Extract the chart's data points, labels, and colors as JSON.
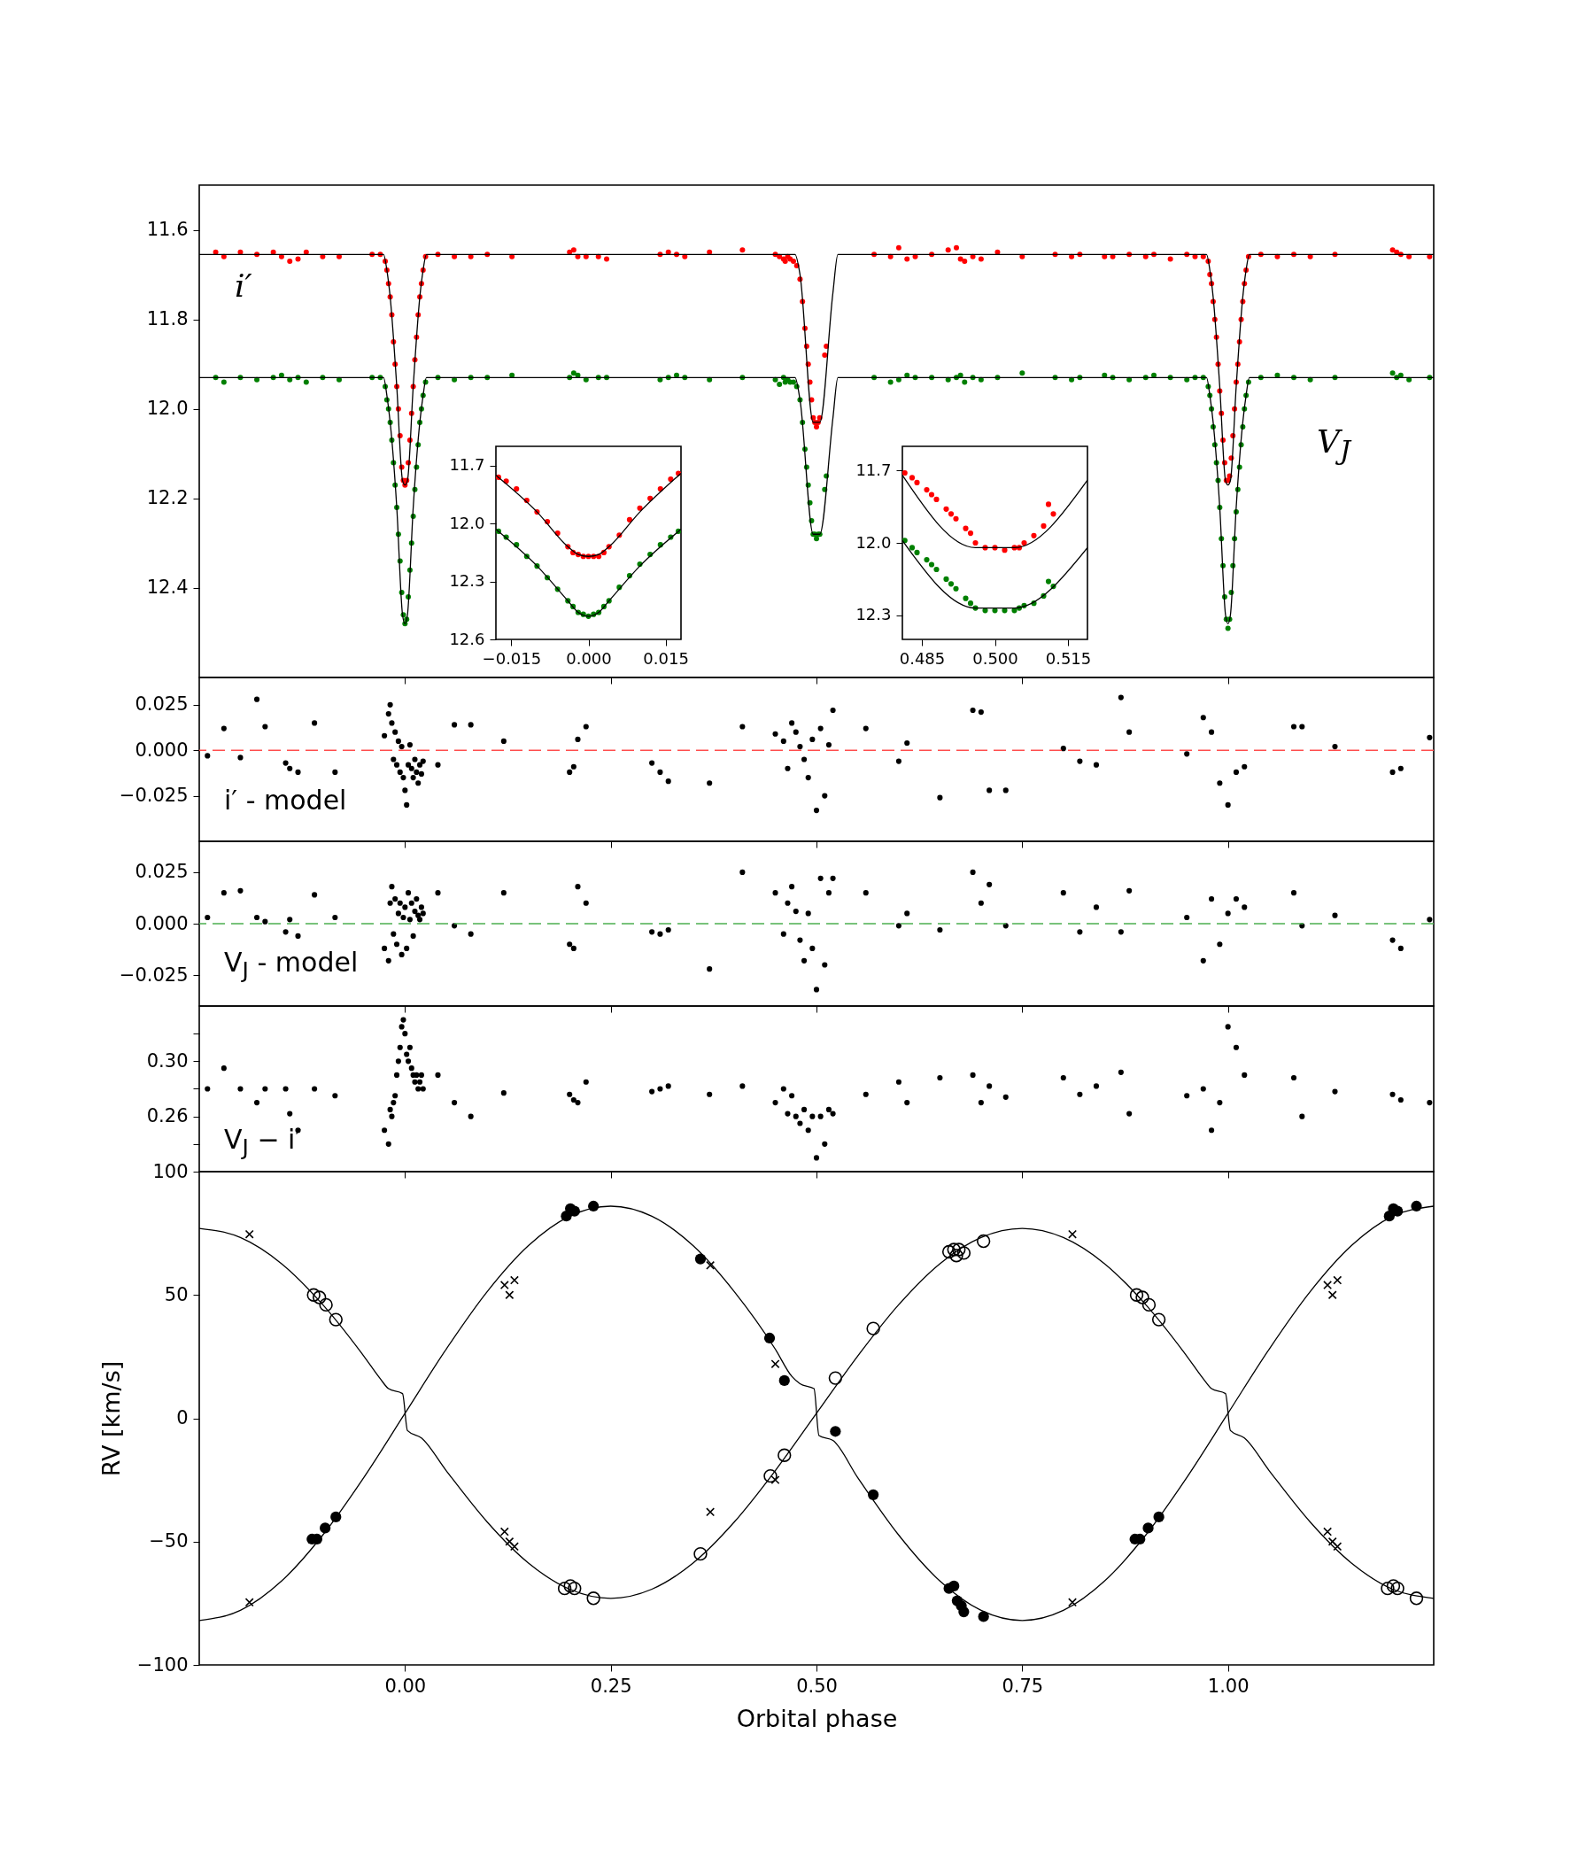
{
  "chart_data": [
    {
      "type": "scatter",
      "xlim": [
        -0.25,
        1.25
      ],
      "ylim": [
        12.6,
        11.5
      ],
      "xticks": [
        {
          "value": 0,
          "label": null
        },
        {
          "value": 0.25,
          "label": null
        },
        {
          "value": 0.5,
          "label": null
        },
        {
          "value": 0.75,
          "label": null
        },
        {
          "value": 1,
          "label": null
        }
      ],
      "yticks": [
        11.6,
        11.8,
        {
          "value": 12.0,
          "label": "12.0"
        },
        12.2,
        12.4
      ],
      "tick_labels": "y",
      "series": [
        {
          "name": "i′",
          "marker": "circle",
          "color": "#ff0000",
          "x": [
            -0.23,
            -0.22,
            -0.2,
            -0.18,
            -0.16,
            -0.15,
            -0.14,
            -0.13,
            -0.12,
            -0.1,
            -0.08,
            -0.04,
            -0.03,
            -0.024,
            -0.022,
            -0.02,
            -0.018,
            -0.016,
            -0.014,
            -0.012,
            -0.01,
            -0.008,
            -0.006,
            -0.004,
            -0.002,
            0,
            0.002,
            0.004,
            0.006,
            0.008,
            0.01,
            0.012,
            0.014,
            0.016,
            0.018,
            0.02,
            0.022,
            0.025,
            0.04,
            0.06,
            0.08,
            0.1,
            0.13,
            0.2,
            0.205,
            0.21,
            0.22,
            0.235,
            0.245,
            0.31,
            0.32,
            0.33,
            0.34,
            0.37,
            0.41,
            0.45,
            0.455,
            0.46,
            0.462,
            0.465,
            0.468,
            0.472,
            0.476,
            0.48,
            0.483,
            0.486,
            0.488,
            0.49,
            0.492,
            0.494,
            0.496,
            0.498,
            0.5,
            0.502,
            0.504,
            0.51,
            0.512,
            0.57,
            0.59,
            0.6,
            0.61,
            0.62,
            0.64,
            0.66,
            0.67,
            0.675,
            0.68,
            0.69,
            0.7,
            0.72,
            0.75,
            0.79,
            0.81,
            0.82,
            0.85,
            0.86,
            0.88,
            0.9,
            0.91,
            0.93,
            0.95,
            0.96,
            0.97,
            0.976,
            0.978,
            0.98,
            0.982,
            0.984,
            0.986,
            0.988,
            0.99,
            0.992,
            0.994,
            0.996,
            0.998,
            1,
            1.002,
            1.004,
            1.006,
            1.008,
            1.01,
            1.012,
            1.014,
            1.016,
            1.018,
            1.02,
            1.022,
            1.025,
            1.04,
            1.06,
            1.08,
            1.1,
            1.13,
            1.2,
            1.205,
            1.21,
            1.22,
            1.245
          ],
          "values": [
            11.65,
            11.66,
            11.65,
            11.655,
            11.65,
            11.66,
            11.67,
            11.665,
            11.65,
            11.66,
            11.66,
            11.655,
            11.655,
            11.67,
            11.69,
            11.72,
            11.75,
            11.79,
            11.85,
            11.9,
            11.95,
            12.0,
            12.06,
            12.13,
            12.16,
            12.17,
            12.16,
            12.12,
            12.07,
            12.01,
            11.95,
            11.89,
            11.84,
            11.79,
            11.75,
            11.72,
            11.69,
            11.66,
            11.655,
            11.66,
            11.66,
            11.655,
            11.66,
            11.65,
            11.645,
            11.66,
            11.66,
            11.66,
            11.665,
            11.655,
            11.65,
            11.655,
            11.66,
            11.65,
            11.645,
            11.655,
            11.66,
            11.665,
            11.67,
            11.66,
            11.665,
            11.67,
            11.68,
            11.71,
            11.76,
            11.82,
            11.86,
            11.9,
            11.94,
            11.98,
            12.02,
            12.03,
            12.04,
            12.03,
            12.02,
            11.88,
            11.86,
            11.655,
            11.66,
            11.64,
            11.665,
            11.66,
            11.655,
            11.645,
            11.64,
            11.665,
            11.67,
            11.66,
            11.665,
            11.65,
            11.66,
            11.655,
            11.66,
            11.655,
            11.66,
            11.66,
            11.655,
            11.66,
            11.655,
            11.665,
            11.655,
            11.66,
            11.66,
            11.67,
            11.7,
            11.72,
            11.76,
            11.8,
            11.84,
            11.9,
            11.96,
            12.01,
            12.07,
            12.12,
            12.16,
            12.16,
            12.15,
            12.11,
            12.06,
            12.0,
            11.94,
            11.9,
            11.85,
            11.8,
            11.76,
            11.72,
            11.69,
            11.66,
            11.655,
            11.66,
            11.655,
            11.66,
            11.655,
            11.645,
            11.65,
            11.655,
            11.66,
            11.66
          ]
        },
        {
          "name": "V$_{J}$",
          "marker": "circle",
          "color": "#008000",
          "x": [
            -0.23,
            -0.22,
            -0.2,
            -0.18,
            -0.16,
            -0.15,
            -0.14,
            -0.13,
            -0.12,
            -0.1,
            -0.08,
            -0.04,
            -0.03,
            -0.024,
            -0.022,
            -0.02,
            -0.018,
            -0.016,
            -0.014,
            -0.012,
            -0.01,
            -0.008,
            -0.006,
            -0.004,
            -0.002,
            0,
            0.002,
            0.004,
            0.006,
            0.008,
            0.01,
            0.012,
            0.014,
            0.016,
            0.018,
            0.02,
            0.022,
            0.025,
            0.04,
            0.06,
            0.08,
            0.1,
            0.13,
            0.2,
            0.205,
            0.21,
            0.22,
            0.235,
            0.245,
            0.31,
            0.32,
            0.33,
            0.34,
            0.37,
            0.41,
            0.45,
            0.455,
            0.46,
            0.462,
            0.465,
            0.468,
            0.472,
            0.476,
            0.48,
            0.483,
            0.486,
            0.488,
            0.49,
            0.492,
            0.494,
            0.496,
            0.498,
            0.5,
            0.502,
            0.504,
            0.51,
            0.512,
            0.57,
            0.59,
            0.6,
            0.61,
            0.62,
            0.64,
            0.66,
            0.67,
            0.675,
            0.68,
            0.69,
            0.7,
            0.72,
            0.75,
            0.79,
            0.81,
            0.82,
            0.85,
            0.86,
            0.88,
            0.9,
            0.91,
            0.93,
            0.95,
            0.96,
            0.97,
            0.976,
            0.978,
            0.98,
            0.982,
            0.984,
            0.986,
            0.988,
            0.99,
            0.992,
            0.994,
            0.996,
            0.998,
            1,
            1.002,
            1.004,
            1.006,
            1.008,
            1.01,
            1.012,
            1.014,
            1.016,
            1.018,
            1.02,
            1.022,
            1.025,
            1.04,
            1.06,
            1.08,
            1.1,
            1.13,
            1.2,
            1.205,
            1.21,
            1.22,
            1.245
          ],
          "values": [
            11.93,
            11.94,
            11.93,
            11.935,
            11.93,
            11.925,
            11.935,
            11.93,
            11.94,
            11.93,
            11.935,
            11.93,
            11.93,
            11.95,
            11.98,
            12.0,
            12.03,
            12.07,
            12.12,
            12.17,
            12.22,
            12.28,
            12.34,
            12.41,
            12.46,
            12.48,
            12.47,
            12.42,
            12.36,
            12.3,
            12.24,
            12.18,
            12.13,
            12.08,
            12.03,
            12.0,
            11.97,
            11.94,
            11.93,
            11.935,
            11.93,
            11.93,
            11.925,
            11.93,
            11.92,
            11.925,
            11.935,
            11.93,
            11.93,
            11.935,
            11.93,
            11.925,
            11.93,
            11.935,
            11.93,
            11.935,
            11.945,
            11.93,
            11.94,
            11.935,
            11.94,
            11.94,
            11.95,
            11.98,
            12.03,
            12.09,
            12.13,
            12.17,
            12.21,
            12.25,
            12.28,
            12.28,
            12.29,
            12.28,
            12.28,
            12.18,
            12.15,
            11.93,
            11.94,
            11.935,
            11.925,
            11.93,
            11.93,
            11.935,
            11.93,
            11.925,
            11.94,
            11.93,
            11.935,
            11.93,
            11.92,
            11.93,
            11.935,
            11.93,
            11.925,
            11.93,
            11.935,
            11.93,
            11.925,
            11.93,
            11.935,
            11.93,
            11.93,
            11.95,
            11.97,
            12.0,
            12.04,
            12.08,
            12.12,
            12.16,
            12.22,
            12.29,
            12.35,
            12.42,
            12.47,
            12.49,
            12.47,
            12.41,
            12.35,
            12.29,
            12.23,
            12.18,
            12.13,
            12.08,
            12.04,
            12.0,
            11.97,
            11.94,
            11.93,
            11.925,
            11.93,
            11.935,
            11.93,
            11.92,
            11.93,
            11.925,
            11.935,
            11.93
          ]
        },
        {
          "type": "line",
          "color": "#000000",
          "x": [
            -0.25,
            -0.026,
            -0.022,
            -0.018,
            -0.01,
            -0.003,
            0,
            0.003,
            0.01,
            0.018,
            0.022,
            0.026,
            0.474,
            0.48,
            0.496,
            0.504,
            0.52,
            0.526,
            0.974,
            0.978,
            0.982,
            0.99,
            0.997,
            1,
            1.003,
            1.01,
            1.018,
            1.022,
            1.026,
            1.25
          ],
          "values": [
            11.655,
            11.655,
            11.69,
            11.75,
            11.95,
            12.16,
            12.17,
            12.16,
            11.95,
            11.75,
            11.69,
            11.655,
            11.655,
            11.7,
            12.03,
            12.03,
            11.74,
            11.655,
            11.655,
            11.69,
            11.75,
            11.95,
            12.16,
            12.17,
            12.16,
            11.95,
            11.75,
            11.69,
            11.655,
            11.655
          ]
        },
        {
          "type": "line",
          "color": "#000000",
          "x": [
            -0.25,
            -0.026,
            -0.022,
            -0.018,
            -0.01,
            -0.003,
            0,
            0.003,
            0.01,
            0.018,
            0.022,
            0.026,
            0.474,
            0.48,
            0.496,
            0.504,
            0.52,
            0.526,
            0.974,
            0.978,
            0.982,
            0.99,
            0.997,
            1,
            1.003,
            1.01,
            1.018,
            1.022,
            1.026,
            1.25
          ],
          "values": [
            11.93,
            11.93,
            11.97,
            12.03,
            12.22,
            12.46,
            12.48,
            12.46,
            12.22,
            12.03,
            11.97,
            11.93,
            11.93,
            11.98,
            12.28,
            12.28,
            12.02,
            11.93,
            11.93,
            11.97,
            12.03,
            12.22,
            12.46,
            12.48,
            12.46,
            12.22,
            12.03,
            11.97,
            11.93,
            11.93
          ]
        }
      ]
    },
    {
      "type": "scatter",
      "xlim": [
        -0.018,
        0.018
      ],
      "ylim": [
        12.6,
        11.6
      ],
      "xticks": [
        {
          "value": -0.015,
          "label": "−0.015"
        },
        {
          "value": 0,
          "label": "0.000"
        },
        {
          "value": 0.015,
          "label": "0.015"
        }
      ],
      "yticks": [
        11.7,
        {
          "value": 12.0,
          "label": "12.0"
        },
        12.3,
        12.6
      ],
      "series": [
        {
          "marker": "circle",
          "color": "#ff0000",
          "x": [
            -0.0175,
            -0.016,
            -0.014,
            -0.012,
            -0.01,
            -0.008,
            -0.006,
            -0.004,
            -0.003,
            -0.002,
            -0.001,
            0,
            0.001,
            0.002,
            0.003,
            0.004,
            0.006,
            0.008,
            0.01,
            0.012,
            0.014,
            0.016,
            0.0175
          ],
          "values": [
            11.76,
            11.78,
            11.82,
            11.88,
            11.94,
            11.99,
            12.05,
            12.12,
            12.15,
            12.16,
            12.17,
            12.17,
            12.17,
            12.17,
            12.15,
            12.12,
            12.06,
            11.98,
            11.92,
            11.87,
            11.82,
            11.77,
            11.74
          ]
        },
        {
          "marker": "circle",
          "color": "#008000",
          "x": [
            -0.0175,
            -0.016,
            -0.014,
            -0.012,
            -0.01,
            -0.008,
            -0.006,
            -0.004,
            -0.003,
            -0.002,
            -0.001,
            0,
            0.001,
            0.002,
            0.003,
            0.004,
            0.006,
            0.008,
            0.01,
            0.012,
            0.014,
            0.016,
            0.0175
          ],
          "values": [
            12.04,
            12.07,
            12.11,
            12.17,
            12.22,
            12.28,
            12.34,
            12.4,
            12.43,
            12.46,
            12.47,
            12.48,
            12.47,
            12.46,
            12.43,
            12.4,
            12.33,
            12.27,
            12.21,
            12.16,
            12.11,
            12.07,
            12.04
          ]
        },
        {
          "type": "line",
          "color": "#000000",
          "x": [
            -0.018,
            -0.01,
            -0.004,
            -0.002,
            0,
            0.002,
            0.004,
            0.01,
            0.018
          ],
          "values": [
            11.75,
            11.94,
            12.12,
            12.16,
            12.17,
            12.16,
            12.12,
            11.94,
            11.74
          ]
        },
        {
          "type": "line",
          "color": "#000000",
          "x": [
            -0.018,
            -0.01,
            -0.004,
            -0.002,
            0,
            0.002,
            0.004,
            0.01,
            0.018
          ],
          "values": [
            12.03,
            12.22,
            12.4,
            12.46,
            12.48,
            12.46,
            12.4,
            12.22,
            12.03
          ]
        }
      ]
    },
    {
      "type": "scatter",
      "xlim": [
        0.481,
        0.519
      ],
      "ylim": [
        12.4,
        11.6
      ],
      "xticks": [
        0.485,
        {
          "value": 0.5,
          "label": "0.500"
        },
        0.515
      ],
      "yticks": [
        11.7,
        {
          "value": 12.0,
          "label": "12.0"
        },
        12.3
      ],
      "series": [
        {
          "marker": "circle",
          "color": "#ff0000",
          "x": [
            0.4815,
            0.483,
            0.484,
            0.486,
            0.487,
            0.488,
            0.49,
            0.491,
            0.492,
            0.494,
            0.495,
            0.496,
            0.498,
            0.5,
            0.502,
            0.504,
            0.505,
            0.506,
            0.508,
            0.51,
            0.511,
            0.512
          ],
          "values": [
            11.71,
            11.73,
            11.75,
            11.78,
            11.8,
            11.82,
            11.86,
            11.88,
            11.9,
            11.94,
            11.96,
            12.0,
            12.02,
            12.02,
            12.03,
            12.02,
            12.02,
            12.0,
            11.97,
            11.93,
            11.84,
            11.88
          ]
        },
        {
          "marker": "circle",
          "color": "#008000",
          "x": [
            0.4815,
            0.483,
            0.484,
            0.486,
            0.487,
            0.488,
            0.49,
            0.491,
            0.492,
            0.494,
            0.495,
            0.496,
            0.498,
            0.5,
            0.502,
            0.504,
            0.505,
            0.506,
            0.508,
            0.51,
            0.511,
            0.512
          ],
          "values": [
            11.99,
            12.02,
            12.04,
            12.07,
            12.09,
            12.11,
            12.15,
            12.17,
            12.19,
            12.23,
            12.25,
            12.27,
            12.28,
            12.28,
            12.28,
            12.28,
            12.27,
            12.26,
            12.25,
            12.22,
            12.16,
            12.18
          ]
        },
        {
          "type": "line",
          "color": "#000000",
          "x": [
            0.481,
            0.496,
            0.504,
            0.519
          ],
          "values": [
            11.72,
            12.02,
            12.02,
            11.74
          ]
        },
        {
          "type": "line",
          "color": "#000000",
          "x": [
            0.481,
            0.496,
            0.504,
            0.519
          ],
          "values": [
            11.99,
            12.27,
            12.27,
            12.02
          ]
        }
      ]
    },
    {
      "type": "scatter",
      "xlim": [
        -0.25,
        1.25
      ],
      "ylim": [
        -0.05,
        0.04
      ],
      "xticks": [
        {
          "value": 0,
          "label": null
        },
        {
          "value": 0.25,
          "label": null
        },
        {
          "value": 0.5,
          "label": null
        },
        {
          "value": 0.75,
          "label": null
        },
        {
          "value": 1,
          "label": null
        }
      ],
      "yticks": [
        {
          "value": 0.025,
          "label": "0.025"
        },
        {
          "value": 0,
          "label": "0.000"
        },
        {
          "value": -0.025,
          "label": "−0.025"
        }
      ],
      "tick_labels": "y",
      "annotations": [
        "i′ - model"
      ],
      "ref_lines": [
        {
          "axis": "y",
          "value": 0,
          "color": "#ff4d4d",
          "line_style": "dashed"
        }
      ],
      "x": [
        -0.24,
        -0.22,
        -0.2,
        -0.18,
        -0.17,
        -0.145,
        -0.14,
        -0.13,
        -0.11,
        -0.085,
        -0.025,
        -0.02,
        -0.018,
        -0.016,
        -0.014,
        -0.012,
        -0.01,
        -0.008,
        -0.006,
        -0.004,
        -0.002,
        0,
        0.002,
        0.004,
        0.006,
        0.008,
        0.01,
        0.012,
        0.014,
        0.016,
        0.018,
        0.02,
        0.022,
        0.04,
        0.06,
        0.08,
        0.12,
        0.2,
        0.205,
        0.21,
        0.22,
        0.3,
        0.31,
        0.32,
        0.37,
        0.41,
        0.45,
        0.46,
        0.465,
        0.47,
        0.475,
        0.48,
        0.485,
        0.49,
        0.495,
        0.5,
        0.505,
        0.51,
        0.515,
        0.52,
        0.56,
        0.6,
        0.61,
        0.65,
        0.69,
        0.7,
        0.71,
        0.73,
        0.8,
        0.82,
        0.84,
        0.87,
        0.88,
        0.95,
        0.97,
        0.98,
        0.99,
        1.0,
        1.01,
        1.02,
        1.08,
        1.09,
        1.13,
        1.2,
        1.21,
        1.245
      ],
      "series": [
        {
          "marker": "circle",
          "color": "#000000",
          "values": [
            -0.003,
            0.012,
            -0.004,
            0.028,
            0.013,
            -0.007,
            -0.01,
            -0.012,
            0.015,
            -0.012,
            0.008,
            0.02,
            0.025,
            0.015,
            -0.005,
            0.01,
            -0.008,
            0.005,
            -0.012,
            0.002,
            -0.015,
            -0.022,
            -0.03,
            -0.008,
            0.003,
            -0.01,
            -0.015,
            -0.005,
            -0.012,
            -0.018,
            -0.008,
            -0.013,
            -0.006,
            -0.008,
            0.014,
            0.014,
            0.005,
            -0.012,
            -0.009,
            0.006,
            0.013,
            -0.007,
            -0.012,
            -0.017,
            -0.018,
            0.013,
            0.009,
            0.005,
            -0.01,
            0.015,
            0.01,
            0.002,
            -0.005,
            -0.015,
            0.006,
            -0.033,
            0.012,
            -0.025,
            0.003,
            0.022,
            0.012,
            -0.006,
            0.004,
            -0.026,
            0.022,
            0.021,
            -0.022,
            -0.022,
            0.001,
            -0.006,
            -0.008,
            0.029,
            0.01,
            -0.002,
            0.018,
            0.01,
            -0.018,
            -0.03,
            -0.012,
            -0.009,
            0.013,
            0.013,
            0.002,
            -0.012,
            -0.01,
            0.007
          ]
        }
      ]
    },
    {
      "type": "scatter",
      "xlim": [
        -0.25,
        1.25
      ],
      "ylim": [
        -0.04,
        0.04
      ],
      "xticks": [
        {
          "value": 0,
          "label": null
        },
        {
          "value": 0.25,
          "label": null
        },
        {
          "value": 0.5,
          "label": null
        },
        {
          "value": 0.75,
          "label": null
        },
        {
          "value": 1,
          "label": null
        }
      ],
      "yticks": [
        {
          "value": 0.025,
          "label": "0.025"
        },
        {
          "value": 0,
          "label": "0.000"
        },
        {
          "value": -0.025,
          "label": "−0.025"
        }
      ],
      "tick_labels": "y",
      "annotations": [
        "V$_{J}$ - model"
      ],
      "ref_lines": [
        {
          "axis": "y",
          "value": 0,
          "color": "#4caf50",
          "line_style": "dashed"
        }
      ],
      "x": [
        -0.24,
        -0.22,
        -0.2,
        -0.18,
        -0.17,
        -0.145,
        -0.14,
        -0.13,
        -0.11,
        -0.085,
        -0.025,
        -0.02,
        -0.018,
        -0.016,
        -0.014,
        -0.012,
        -0.01,
        -0.008,
        -0.006,
        -0.004,
        -0.002,
        0,
        0.002,
        0.004,
        0.006,
        0.008,
        0.01,
        0.012,
        0.014,
        0.016,
        0.018,
        0.02,
        0.022,
        0.04,
        0.06,
        0.08,
        0.12,
        0.2,
        0.205,
        0.21,
        0.22,
        0.3,
        0.31,
        0.32,
        0.37,
        0.41,
        0.45,
        0.46,
        0.465,
        0.47,
        0.475,
        0.48,
        0.485,
        0.49,
        0.495,
        0.5,
        0.505,
        0.51,
        0.515,
        0.52,
        0.56,
        0.6,
        0.61,
        0.65,
        0.69,
        0.7,
        0.71,
        0.73,
        0.8,
        0.82,
        0.84,
        0.87,
        0.88,
        0.95,
        0.97,
        0.98,
        0.99,
        1.0,
        1.01,
        1.02,
        1.08,
        1.09,
        1.13,
        1.2,
        1.21,
        1.245
      ],
      "series": [
        {
          "marker": "circle",
          "color": "#000000",
          "values": [
            0.003,
            0.015,
            0.016,
            0.003,
            0.001,
            -0.004,
            0.002,
            -0.006,
            0.014,
            0.003,
            -0.012,
            -0.018,
            0.01,
            0.018,
            -0.005,
            0.012,
            -0.01,
            0.005,
            0.01,
            -0.015,
            0.003,
            0.008,
            -0.012,
            0.015,
            0.002,
            0.01,
            -0.006,
            0.006,
            0.012,
            0.004,
            0.002,
            0.008,
            0.005,
            0.015,
            -0.001,
            -0.005,
            0.015,
            -0.01,
            -0.012,
            0.018,
            0.01,
            -0.004,
            -0.005,
            -0.003,
            -0.022,
            0.025,
            0.015,
            -0.005,
            0.01,
            0.018,
            0.006,
            -0.008,
            -0.018,
            0.005,
            -0.012,
            -0.032,
            0.022,
            -0.02,
            0.015,
            0.022,
            0.015,
            -0.001,
            0.005,
            -0.003,
            0.025,
            0.01,
            0.019,
            -0.001,
            0.015,
            -0.004,
            0.008,
            -0.004,
            0.016,
            0.003,
            -0.018,
            0.012,
            -0.01,
            0.005,
            0.012,
            0.008,
            0.015,
            -0.001,
            0.004,
            -0.008,
            -0.012,
            0.002
          ]
        }
      ]
    },
    {
      "type": "scatter",
      "xlim": [
        -0.25,
        1.25
      ],
      "ylim": [
        0.22,
        0.34
      ],
      "xticks": [
        {
          "value": 0,
          "label": null
        },
        {
          "value": 0.25,
          "label": null
        },
        {
          "value": 0.5,
          "label": null
        },
        {
          "value": 0.75,
          "label": null
        },
        {
          "value": 1,
          "label": null
        }
      ],
      "yticks": [
        {
          "value": 0.24,
          "label": null
        },
        {
          "value": 0.26,
          "label": "0.26"
        },
        {
          "value": 0.28,
          "label": null
        },
        {
          "value": 0.3,
          "label": "0.30"
        },
        {
          "value": 0.32,
          "label": null
        }
      ],
      "tick_labels": "y",
      "annotations": [
        "V$_{J}$ − i′"
      ],
      "x": [
        -0.24,
        -0.22,
        -0.2,
        -0.18,
        -0.17,
        -0.145,
        -0.14,
        -0.13,
        -0.11,
        -0.085,
        -0.025,
        -0.02,
        -0.018,
        -0.016,
        -0.014,
        -0.012,
        -0.01,
        -0.008,
        -0.006,
        -0.004,
        -0.002,
        0,
        0.002,
        0.004,
        0.006,
        0.008,
        0.01,
        0.012,
        0.014,
        0.016,
        0.018,
        0.02,
        0.022,
        0.04,
        0.06,
        0.08,
        0.12,
        0.2,
        0.205,
        0.21,
        0.22,
        0.3,
        0.31,
        0.32,
        0.37,
        0.41,
        0.45,
        0.46,
        0.465,
        0.47,
        0.475,
        0.48,
        0.485,
        0.49,
        0.495,
        0.5,
        0.505,
        0.51,
        0.515,
        0.52,
        0.56,
        0.6,
        0.61,
        0.65,
        0.69,
        0.7,
        0.71,
        0.73,
        0.8,
        0.82,
        0.84,
        0.87,
        0.88,
        0.95,
        0.97,
        0.98,
        0.99,
        1.0,
        1.01,
        1.02,
        1.08,
        1.09,
        1.13,
        1.2,
        1.21,
        1.245
      ],
      "series": [
        {
          "marker": "circle",
          "color": "#000000",
          "values": [
            0.28,
            0.295,
            0.28,
            0.27,
            0.28,
            0.28,
            0.262,
            0.25,
            0.28,
            0.275,
            0.25,
            0.24,
            0.265,
            0.26,
            0.27,
            0.275,
            0.29,
            0.3,
            0.31,
            0.325,
            0.33,
            0.32,
            0.305,
            0.3,
            0.31,
            0.295,
            0.29,
            0.285,
            0.29,
            0.28,
            0.285,
            0.29,
            0.28,
            0.29,
            0.27,
            0.26,
            0.277,
            0.276,
            0.272,
            0.27,
            0.285,
            0.278,
            0.28,
            0.282,
            0.276,
            0.282,
            0.27,
            0.28,
            0.262,
            0.275,
            0.26,
            0.255,
            0.265,
            0.25,
            0.26,
            0.23,
            0.26,
            0.24,
            0.265,
            0.262,
            0.276,
            0.285,
            0.27,
            0.288,
            0.29,
            0.27,
            0.282,
            0.274,
            0.288,
            0.276,
            0.282,
            0.292,
            0.262,
            0.275,
            0.28,
            0.25,
            0.27,
            0.325,
            0.31,
            0.29,
            0.288,
            0.26,
            0.278,
            0.276,
            0.272,
            0.27
          ]
        }
      ]
    },
    {
      "type": "scatter",
      "xlim": [
        -0.25,
        1.25
      ],
      "ylim": [
        -100,
        100
      ],
      "xlabel": "Orbital phase",
      "ylabel": "RV [km/s]",
      "xticks": [
        {
          "value": 0,
          "label": "0.00"
        },
        {
          "value": 0.25,
          "label": "0.25"
        },
        {
          "value": 0.5,
          "label": "0.50"
        },
        {
          "value": 0.75,
          "label": "0.75"
        },
        {
          "value": 1,
          "label": "1.00"
        }
      ],
      "yticks": [
        {
          "value": -100,
          "label": "−100"
        },
        {
          "value": -50,
          "label": "−50"
        },
        0,
        50,
        100
      ],
      "series": [
        {
          "type": "line",
          "color": "#000000",
          "x": [
            -0.25,
            -0.2,
            -0.15,
            -0.1,
            -0.05,
            0,
            0.05,
            0.1,
            0.15,
            0.2,
            0.25,
            0.3,
            0.35,
            0.4,
            0.45,
            0.47,
            0.48,
            0.497,
            0.503,
            0.52,
            0.55,
            0.6,
            0.65,
            0.7,
            0.75,
            0.8,
            0.85,
            0.9,
            0.95,
            1,
            1.05,
            1.1,
            1.15,
            1.2,
            1.25
          ],
          "values": [
            -82,
            -77.9,
            -66,
            -47.4,
            -24,
            2,
            28,
            51.4,
            70,
            81.9,
            86,
            81.9,
            70,
            51.4,
            28,
            17,
            14,
            12,
            -7,
            -9,
            -24,
            -47.4,
            -66,
            -77.9,
            -82,
            -77.9,
            -66,
            -47.4,
            -24,
            2,
            28,
            51.4,
            70,
            81.9,
            86
          ]
        },
        {
          "type": "line",
          "color": "#000000",
          "x": [
            -0.25,
            -0.2,
            -0.15,
            -0.1,
            -0.05,
            -0.03,
            -0.02,
            -0.003,
            0.003,
            0.02,
            0.05,
            0.1,
            0.15,
            0.2,
            0.25,
            0.3,
            0.35,
            0.4,
            0.45,
            0.5,
            0.55,
            0.6,
            0.65,
            0.7,
            0.75,
            0.8,
            0.85,
            0.9,
            0.95,
            0.97,
            0.98,
            0.997,
            1.003,
            1.02,
            1.05,
            1.1,
            1.15,
            1.2,
            1.25
          ],
          "values": [
            77,
            73.3,
            62.7,
            46.1,
            25.2,
            16,
            12,
            10,
            -5,
            -8,
            -21.2,
            -42.1,
            -58.7,
            -69.3,
            -73,
            -69.3,
            -58.7,
            -42.1,
            -21.2,
            2,
            25.2,
            46.1,
            62.7,
            73.3,
            77,
            73.3,
            62.7,
            46.1,
            25.2,
            16,
            12,
            10,
            -5,
            -8,
            -21.2,
            -42.1,
            -58.7,
            -69.3,
            -73
          ]
        },
        {
          "marker": "circle",
          "color": "#000000",
          "x": [
            -0.113,
            -0.107,
            -0.097,
            -0.084,
            0.196,
            0.201,
            0.206,
            0.229,
            0.359,
            0.443,
            0.461,
            0.523,
            0.569,
            0.661,
            0.667,
            0.671,
            0.676,
            0.679,
            0.703,
            0.887,
            0.893,
            0.903,
            0.916,
            1.196,
            1.201,
            1.206,
            1.229
          ],
          "values": [
            -49,
            -49,
            -44.5,
            -40,
            82,
            85,
            84,
            86,
            64.6,
            32.5,
            15.3,
            -5.3,
            -31,
            -69,
            -68,
            -74,
            -76,
            -78.5,
            -80.4,
            -49,
            -49,
            -44.5,
            -40,
            82,
            85,
            84,
            86
          ]
        },
        {
          "marker": "circle-open",
          "color": "#000000",
          "x": [
            -0.111,
            -0.104,
            -0.096,
            -0.084,
            0.194,
            0.201,
            0.206,
            0.229,
            0.359,
            0.444,
            0.461,
            0.523,
            0.569,
            0.661,
            0.667,
            0.67,
            0.673,
            0.679,
            0.703,
            0.889,
            0.896,
            0.904,
            0.916,
            1.194,
            1.201,
            1.206,
            1.229
          ],
          "values": [
            50,
            49,
            46,
            40,
            -69,
            -68,
            -69,
            -73,
            -55,
            -23.4,
            -15,
            16.3,
            36.4,
            67.5,
            68.4,
            66,
            68.4,
            67,
            71.8,
            50,
            49,
            46,
            40,
            -69,
            -68,
            -69,
            -73
          ]
        },
        {
          "marker": "cross",
          "color": "#000000",
          "x": [
            -0.189,
            -0.189,
            0.121,
            0.133,
            0.127,
            0.121,
            0.127,
            0.133,
            0.371,
            0.371,
            0.45,
            0.45,
            0.811,
            0.811,
            1.121,
            1.133,
            1.127,
            1.121,
            1.127,
            1.133
          ],
          "values": [
            74.6,
            -74.6,
            54,
            56,
            50,
            -46,
            -50,
            -52,
            62,
            -38,
            22,
            -25,
            74.6,
            -74.6,
            54,
            56,
            50,
            -46,
            -50,
            -52
          ]
        }
      ]
    }
  ]
}
